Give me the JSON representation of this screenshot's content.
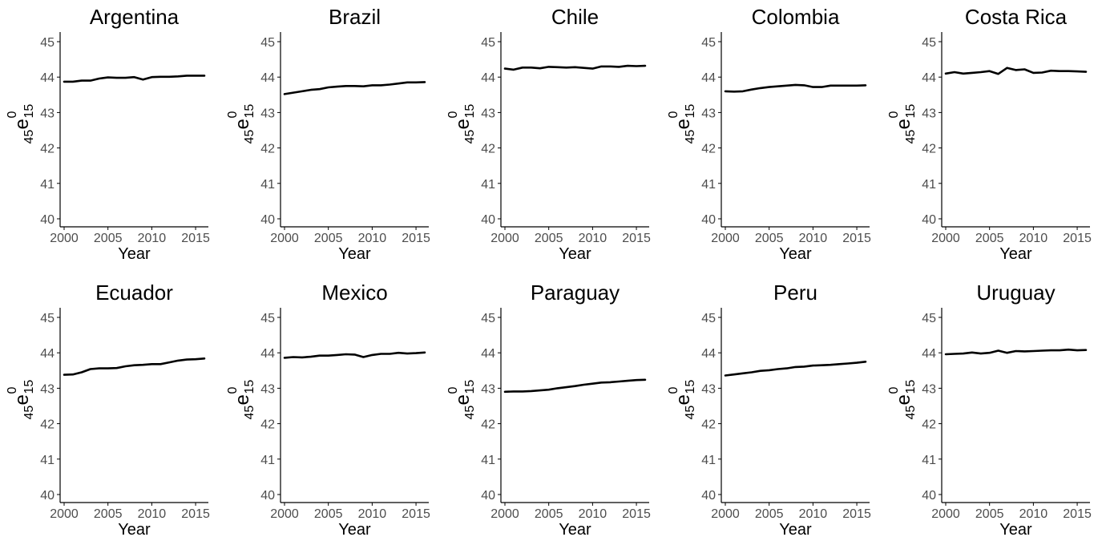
{
  "layout_note": "",
  "chart_data": [
    {
      "type": "line",
      "title": "Argentina",
      "xlabel": "Year",
      "ylabel": "45e15 0",
      "xlim": [
        2000,
        2016
      ],
      "ylim": [
        40,
        45
      ],
      "xticks": [
        "2000",
        "2005",
        "2010",
        "2015"
      ],
      "yticks": [
        "40",
        "41",
        "42",
        "43",
        "44",
        "45"
      ],
      "grid": false,
      "x": [
        2000,
        2001,
        2002,
        2003,
        2004,
        2005,
        2006,
        2007,
        2008,
        2009,
        2010,
        2011,
        2012,
        2013,
        2014,
        2015,
        2016
      ],
      "series": [
        {
          "values": [
            43.87,
            43.87,
            43.9,
            43.9,
            43.96,
            43.99,
            43.98,
            43.98,
            44.0,
            43.93,
            44.0,
            44.01,
            44.01,
            44.02,
            44.04,
            44.04,
            44.04
          ]
        }
      ]
    },
    {
      "type": "line",
      "title": "Brazil",
      "xlabel": "Year",
      "ylabel": "45e15 0",
      "xlim": [
        2000,
        2016
      ],
      "ylim": [
        40,
        45
      ],
      "xticks": [
        "2000",
        "2005",
        "2010",
        "2015"
      ],
      "yticks": [
        "40",
        "41",
        "42",
        "43",
        "44",
        "45"
      ],
      "grid": false,
      "x": [
        2000,
        2001,
        2002,
        2003,
        2004,
        2005,
        2006,
        2007,
        2008,
        2009,
        2010,
        2011,
        2012,
        2013,
        2014,
        2015,
        2016
      ],
      "series": [
        {
          "values": [
            43.52,
            43.56,
            43.6,
            43.64,
            43.66,
            43.71,
            43.73,
            43.75,
            43.75,
            43.74,
            43.77,
            43.77,
            43.79,
            43.82,
            43.85,
            43.85,
            43.86
          ]
        }
      ]
    },
    {
      "type": "line",
      "title": "Chile",
      "xlabel": "Year",
      "ylabel": "45e15 0",
      "xlim": [
        2000,
        2016
      ],
      "ylim": [
        40,
        45
      ],
      "xticks": [
        "2000",
        "2005",
        "2010",
        "2015"
      ],
      "yticks": [
        "40",
        "41",
        "42",
        "43",
        "44",
        "45"
      ],
      "grid": false,
      "x": [
        2000,
        2001,
        2002,
        2003,
        2004,
        2005,
        2006,
        2007,
        2008,
        2009,
        2010,
        2011,
        2012,
        2013,
        2014,
        2015,
        2016
      ],
      "series": [
        {
          "values": [
            44.24,
            44.21,
            44.27,
            44.27,
            44.25,
            44.29,
            44.28,
            44.27,
            44.28,
            44.26,
            44.24,
            44.3,
            44.3,
            44.29,
            44.32,
            44.31,
            44.32
          ]
        }
      ]
    },
    {
      "type": "line",
      "title": "Colombia",
      "xlabel": "Year",
      "ylabel": "45e15 0",
      "xlim": [
        2000,
        2016
      ],
      "ylim": [
        40,
        45
      ],
      "xticks": [
        "2000",
        "2005",
        "2010",
        "2015"
      ],
      "yticks": [
        "40",
        "41",
        "42",
        "43",
        "44",
        "45"
      ],
      "grid": false,
      "x": [
        2000,
        2001,
        2002,
        2003,
        2004,
        2005,
        2006,
        2007,
        2008,
        2009,
        2010,
        2011,
        2012,
        2013,
        2014,
        2015,
        2016
      ],
      "series": [
        {
          "values": [
            43.6,
            43.59,
            43.6,
            43.65,
            43.69,
            43.72,
            43.74,
            43.76,
            43.78,
            43.77,
            43.72,
            43.72,
            43.76,
            43.76,
            43.76,
            43.76,
            43.77
          ]
        }
      ]
    },
    {
      "type": "line",
      "title": "Costa Rica",
      "xlabel": "Year",
      "ylabel": "45e15 0",
      "xlim": [
        2000,
        2016
      ],
      "ylim": [
        40,
        45
      ],
      "xticks": [
        "2000",
        "2005",
        "2010",
        "2015"
      ],
      "yticks": [
        "40",
        "41",
        "42",
        "43",
        "44",
        "45"
      ],
      "grid": false,
      "x": [
        2000,
        2001,
        2002,
        2003,
        2004,
        2005,
        2006,
        2007,
        2008,
        2009,
        2010,
        2011,
        2012,
        2013,
        2014,
        2015,
        2016
      ],
      "series": [
        {
          "values": [
            44.1,
            44.14,
            44.1,
            44.12,
            44.14,
            44.17,
            44.09,
            44.26,
            44.2,
            44.22,
            44.12,
            44.13,
            44.18,
            44.17,
            44.17,
            44.16,
            44.15
          ]
        }
      ]
    },
    {
      "type": "line",
      "title": "Ecuador",
      "xlabel": "Year",
      "ylabel": "45e15 0",
      "xlim": [
        2000,
        2016
      ],
      "ylim": [
        40,
        45
      ],
      "xticks": [
        "2000",
        "2005",
        "2010",
        "2015"
      ],
      "yticks": [
        "40",
        "41",
        "42",
        "43",
        "44",
        "45"
      ],
      "grid": false,
      "x": [
        2000,
        2001,
        2002,
        2003,
        2004,
        2005,
        2006,
        2007,
        2008,
        2009,
        2010,
        2011,
        2012,
        2013,
        2014,
        2015,
        2016
      ],
      "series": [
        {
          "values": [
            43.38,
            43.39,
            43.45,
            43.54,
            43.56,
            43.56,
            43.57,
            43.62,
            43.65,
            43.66,
            43.68,
            43.68,
            43.73,
            43.78,
            43.81,
            43.82,
            43.84
          ]
        }
      ]
    },
    {
      "type": "line",
      "title": "Mexico",
      "xlabel": "Year",
      "ylabel": "45e15 0",
      "xlim": [
        2000,
        2016
      ],
      "ylim": [
        40,
        45
      ],
      "xticks": [
        "2000",
        "2005",
        "2010",
        "2015"
      ],
      "yticks": [
        "40",
        "41",
        "42",
        "43",
        "44",
        "45"
      ],
      "grid": false,
      "x": [
        2000,
        2001,
        2002,
        2003,
        2004,
        2005,
        2006,
        2007,
        2008,
        2009,
        2010,
        2011,
        2012,
        2013,
        2014,
        2015,
        2016
      ],
      "series": [
        {
          "values": [
            43.86,
            43.88,
            43.87,
            43.89,
            43.92,
            43.92,
            43.94,
            43.96,
            43.95,
            43.88,
            43.94,
            43.97,
            43.97,
            44.0,
            43.98,
            43.99,
            44.01
          ]
        }
      ]
    },
    {
      "type": "line",
      "title": "Paraguay",
      "xlabel": "Year",
      "ylabel": "45e15 0",
      "xlim": [
        2000,
        2016
      ],
      "ylim": [
        40,
        45
      ],
      "xticks": [
        "2000",
        "2005",
        "2010",
        "2015"
      ],
      "yticks": [
        "40",
        "41",
        "42",
        "43",
        "44",
        "45"
      ],
      "grid": false,
      "x": [
        2000,
        2001,
        2002,
        2003,
        2004,
        2005,
        2006,
        2007,
        2008,
        2009,
        2010,
        2011,
        2012,
        2013,
        2014,
        2015,
        2016
      ],
      "series": [
        {
          "values": [
            42.9,
            42.91,
            42.91,
            42.92,
            42.94,
            42.96,
            43.0,
            43.03,
            43.06,
            43.1,
            43.13,
            43.16,
            43.17,
            43.19,
            43.21,
            43.23,
            43.24
          ]
        }
      ]
    },
    {
      "type": "line",
      "title": "Peru",
      "xlabel": "Year",
      "ylabel": "45e15 0",
      "xlim": [
        2000,
        2016
      ],
      "ylim": [
        40,
        45
      ],
      "xticks": [
        "2000",
        "2005",
        "2010",
        "2015"
      ],
      "yticks": [
        "40",
        "41",
        "42",
        "43",
        "44",
        "45"
      ],
      "grid": false,
      "x": [
        2000,
        2001,
        2002,
        2003,
        2004,
        2005,
        2006,
        2007,
        2008,
        2009,
        2010,
        2011,
        2012,
        2013,
        2014,
        2015,
        2016
      ],
      "series": [
        {
          "values": [
            43.36,
            43.39,
            43.42,
            43.45,
            43.49,
            43.51,
            43.54,
            43.56,
            43.6,
            43.61,
            43.64,
            43.65,
            43.66,
            43.68,
            43.7,
            43.72,
            43.75
          ]
        }
      ]
    },
    {
      "type": "line",
      "title": "Uruguay",
      "xlabel": "Year",
      "ylabel": "45e15 0",
      "xlim": [
        2000,
        2016
      ],
      "ylim": [
        40,
        45
      ],
      "xticks": [
        "2000",
        "2005",
        "2010",
        "2015"
      ],
      "yticks": [
        "40",
        "41",
        "42",
        "43",
        "44",
        "45"
      ],
      "grid": false,
      "x": [
        2000,
        2001,
        2002,
        2003,
        2004,
        2005,
        2006,
        2007,
        2008,
        2009,
        2010,
        2011,
        2012,
        2013,
        2014,
        2015,
        2016
      ],
      "series": [
        {
          "values": [
            43.96,
            43.97,
            43.98,
            44.01,
            43.98,
            44.0,
            44.06,
            44.0,
            44.05,
            44.04,
            44.05,
            44.06,
            44.07,
            44.07,
            44.09,
            44.07,
            44.08
          ]
        }
      ]
    }
  ],
  "ylabel_parts": {
    "pre": "45",
    "base": "e",
    "sub": "15",
    "sup": "0"
  },
  "colors": {
    "line": "#000000",
    "axis": "#000000",
    "tick_label": "#4d4d4d",
    "title": "#000000"
  }
}
